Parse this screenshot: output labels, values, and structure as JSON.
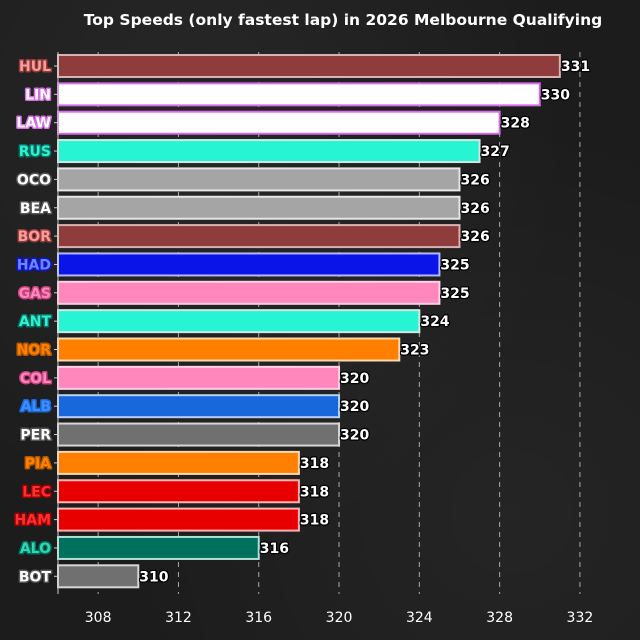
{
  "chart_data": {
    "type": "bar",
    "orientation": "horizontal",
    "title": "Top Speeds (only fastest lap) in 2026 Melbourne Qualifying",
    "xlabel": "",
    "ylabel": "",
    "xlim": [
      306,
      333
    ],
    "xticks": [
      308,
      312,
      316,
      320,
      324,
      328,
      332
    ],
    "grid": "vertical-dashed",
    "categories": [
      "HUL",
      "LIN",
      "LAW",
      "RUS",
      "OCO",
      "BEA",
      "BOR",
      "HAD",
      "GAS",
      "ANT",
      "NOR",
      "COL",
      "ALB",
      "PER",
      "PIA",
      "LEC",
      "HAM",
      "ALO",
      "BOT"
    ],
    "values": [
      331,
      330,
      328,
      327,
      326,
      326,
      326,
      325,
      325,
      324,
      323,
      320,
      320,
      320,
      318,
      318,
      318,
      316,
      310
    ],
    "bar_colors": [
      "#8f3c3c",
      "#ffffff",
      "#ffffff",
      "#27f4d2",
      "#a5a5a5",
      "#a5a5a5",
      "#8f3c3c",
      "#0a14e8",
      "#ff87bc",
      "#27f4d2",
      "#ff8000",
      "#ff87bc",
      "#1868db",
      "#707070",
      "#ff8000",
      "#e80000",
      "#e80000",
      "#00705e",
      "#707070"
    ],
    "border_colors": [
      "#d9b3b3",
      "#d46ee8",
      "#d46ee8",
      "#cfe8e3",
      "#e6e6e6",
      "#e6e6e6",
      "#d9b3b3",
      "#b3b9ff",
      "#ffd1e6",
      "#cfe8e3",
      "#ffd9b0",
      "#ffd1e6",
      "#b8d0f5",
      "#d6d6d6",
      "#ffd9b0",
      "#ffb3b3",
      "#ffb3b3",
      "#b3e0d6",
      "#d6d6d6"
    ],
    "label_colors": [
      "#ff9a9a",
      "#ffffff",
      "#ffffff",
      "#27f4d2",
      "#ffffff",
      "#ffffff",
      "#ff9a9a",
      "#6f86ff",
      "#ff87bc",
      "#27f4d2",
      "#ff8000",
      "#ff87bc",
      "#3f8cff",
      "#ffffff",
      "#ff8000",
      "#ff3030",
      "#ff3030",
      "#2fd6b0",
      "#ffffff"
    ],
    "label_glow": [
      "#8f3c3c",
      "#d46ee8",
      "#d46ee8",
      "#0d6f61",
      "#555555",
      "#555555",
      "#8f3c3c",
      "#0a14e8",
      "#c8437f",
      "#0d6f61",
      "#b35a00",
      "#c8437f",
      "#1868db",
      "#555555",
      "#b35a00",
      "#a00000",
      "#a00000",
      "#00705e",
      "#555555"
    ],
    "background": "#1c1c1c",
    "text_color": "#ffffff"
  }
}
